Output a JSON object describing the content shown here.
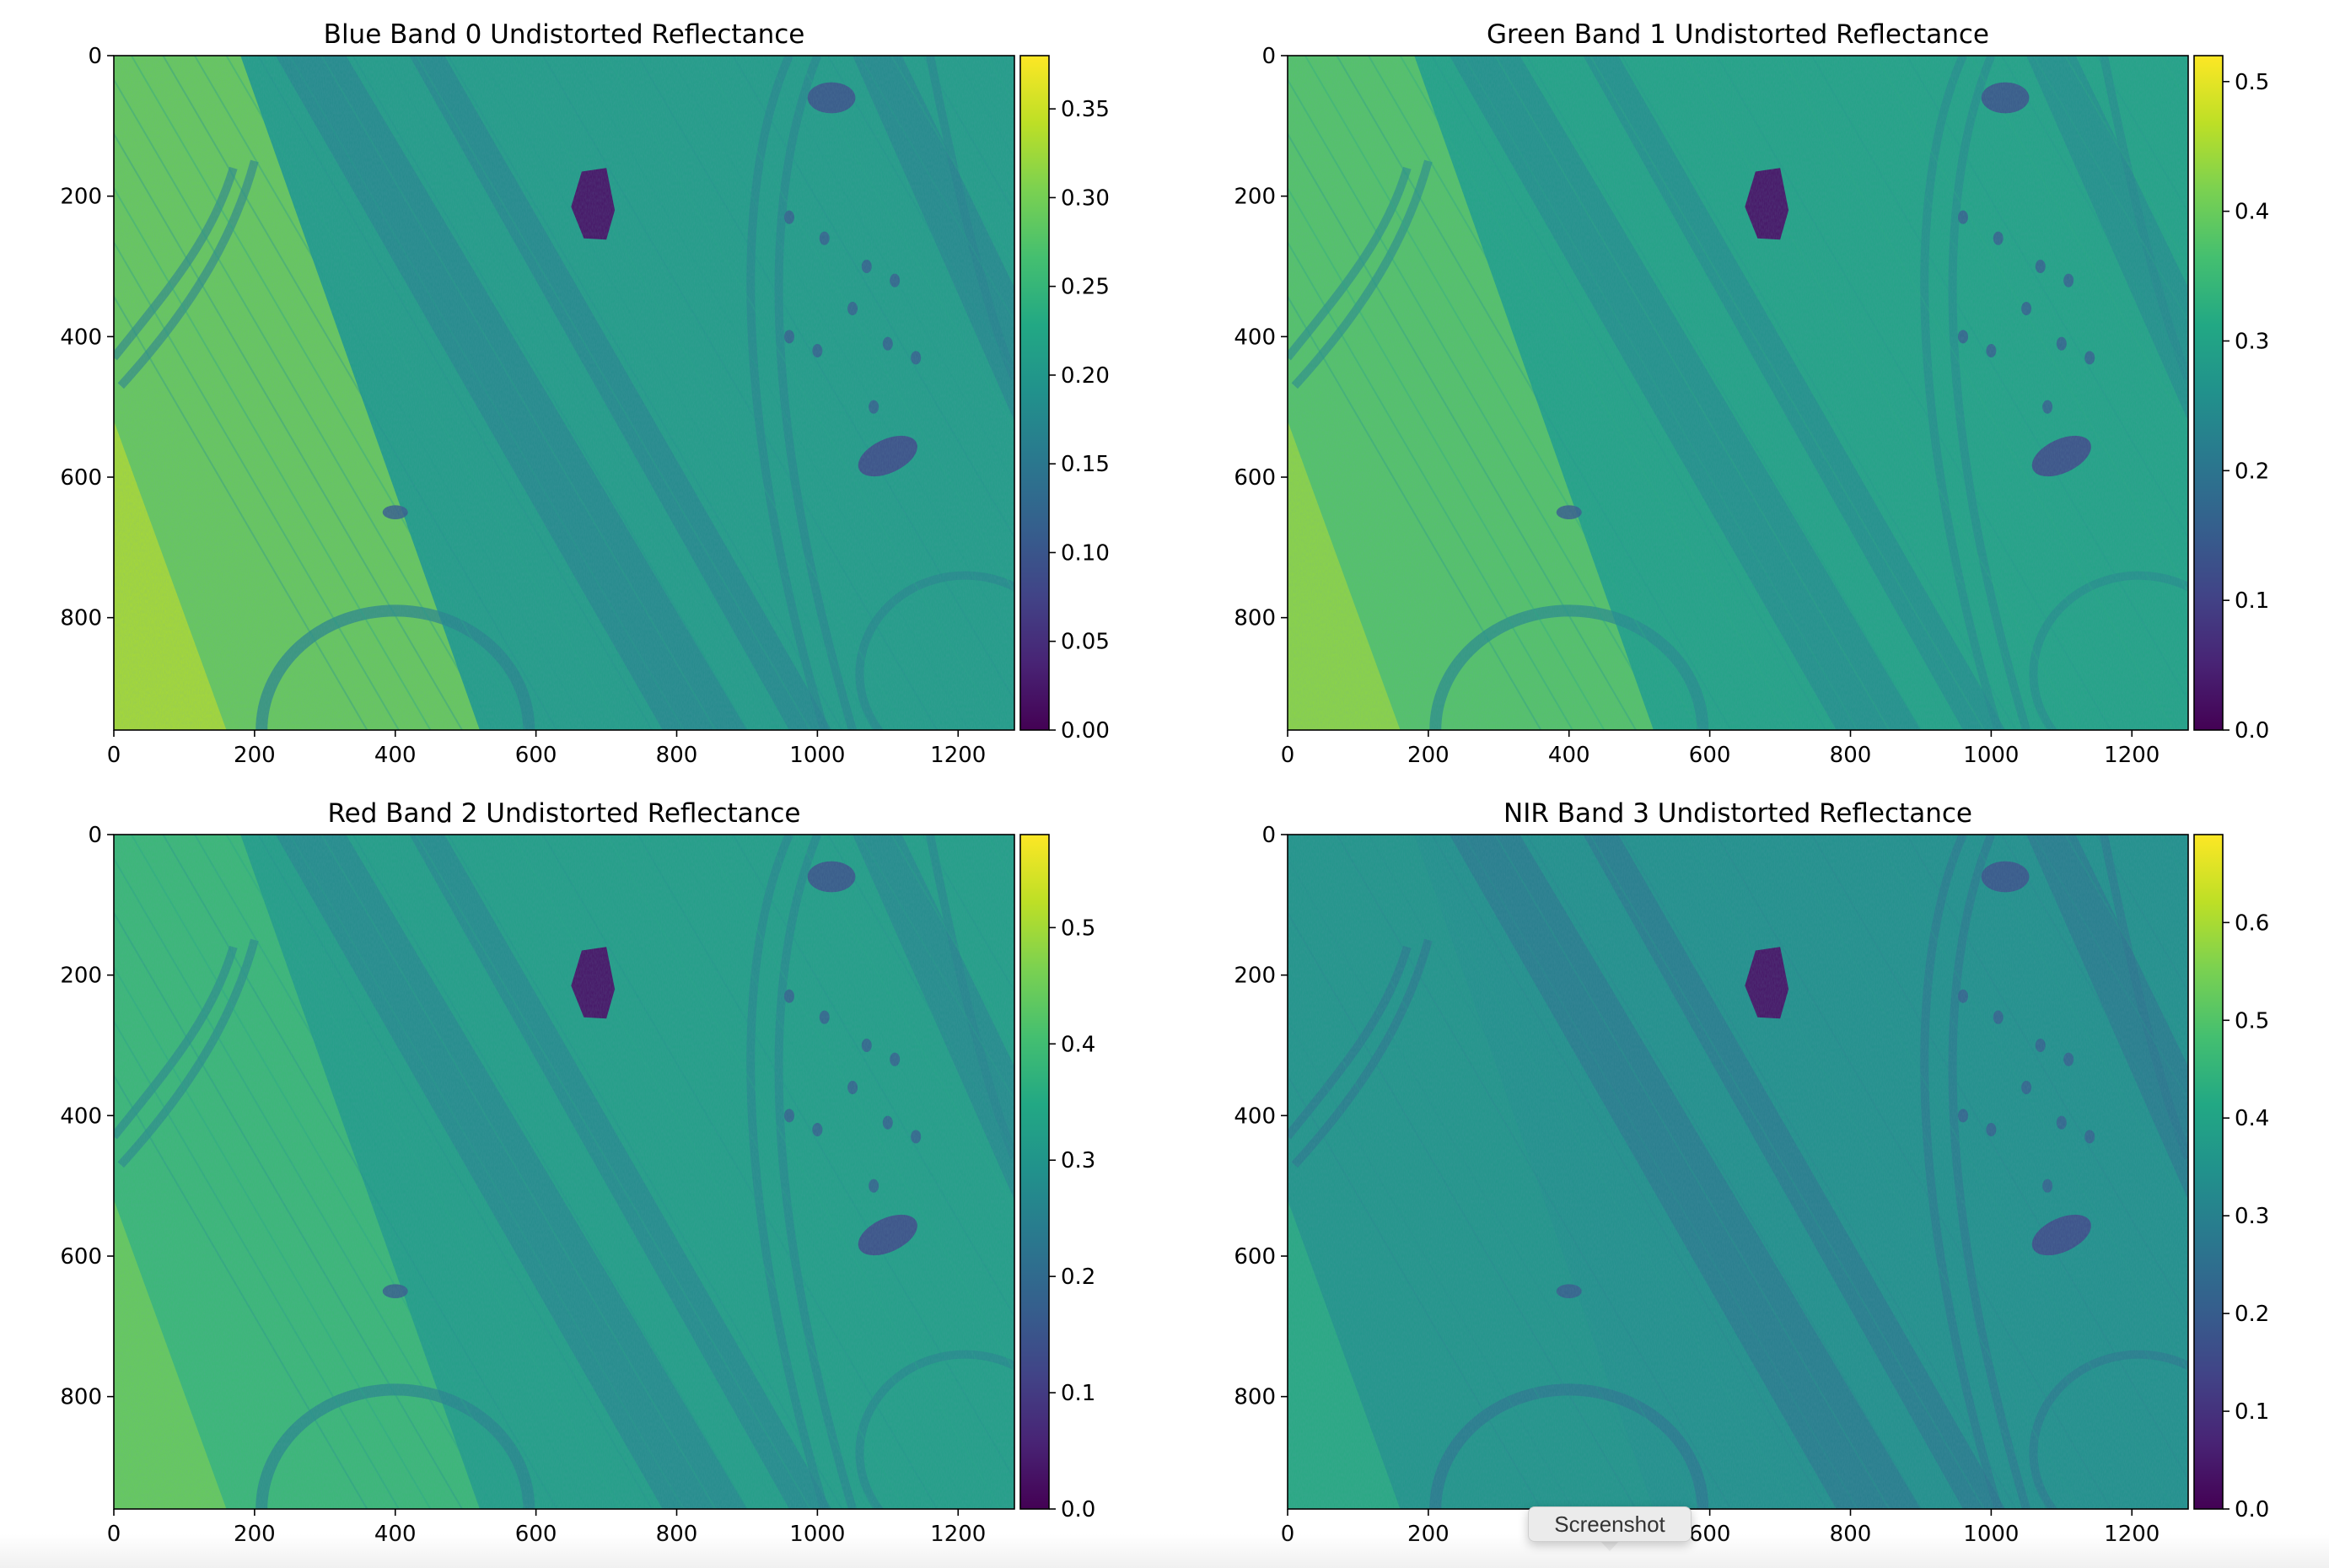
{
  "chart_data": [
    {
      "type": "heatmap",
      "title": "Blue Band 0 Undistorted Reflectance",
      "colormap": "viridis",
      "xlim": [
        0,
        1280
      ],
      "ylim": [
        960,
        0
      ],
      "xticks": [
        0,
        200,
        400,
        600,
        800,
        1000,
        1200
      ],
      "yticks": [
        0,
        200,
        400,
        600,
        800
      ],
      "colorbar": {
        "range": [
          0.0,
          0.38
        ],
        "ticks": [
          0.0,
          0.05,
          0.1,
          0.15,
          0.2,
          0.25,
          0.3,
          0.35
        ],
        "tick_labels": [
          "0.00",
          "0.05",
          "0.10",
          "0.15",
          "0.20",
          "0.25",
          "0.30",
          "0.35"
        ]
      },
      "base_level": 0.55,
      "left_bright": 0.82
    },
    {
      "type": "heatmap",
      "title": "Green Band 1 Undistorted Reflectance",
      "colormap": "viridis",
      "xlim": [
        0,
        1280
      ],
      "ylim": [
        960,
        0
      ],
      "xticks": [
        0,
        200,
        400,
        600,
        800,
        1000,
        1200
      ],
      "yticks": [
        0,
        200,
        400,
        600,
        800
      ],
      "colorbar": {
        "range": [
          0.0,
          0.52
        ],
        "ticks": [
          0.0,
          0.1,
          0.2,
          0.3,
          0.4,
          0.5
        ],
        "tick_labels": [
          "0.0",
          "0.1",
          "0.2",
          "0.3",
          "0.4",
          "0.5"
        ]
      },
      "base_level": 0.58,
      "left_bright": 0.78
    },
    {
      "type": "heatmap",
      "title": "Red Band 2 Undistorted Reflectance",
      "colormap": "viridis",
      "xlim": [
        0,
        1280
      ],
      "ylim": [
        960,
        0
      ],
      "xticks": [
        0,
        200,
        400,
        600,
        800,
        1000,
        1200
      ],
      "yticks": [
        0,
        200,
        400,
        600,
        800
      ],
      "colorbar": {
        "range": [
          0.0,
          0.58
        ],
        "ticks": [
          0.0,
          0.1,
          0.2,
          0.3,
          0.4,
          0.5
        ],
        "tick_labels": [
          "0.0",
          "0.1",
          "0.2",
          "0.3",
          "0.4",
          "0.5"
        ]
      },
      "base_level": 0.56,
      "left_bright": 0.72
    },
    {
      "type": "heatmap",
      "title": "NIR Band 3 Undistorted Reflectance",
      "colormap": "viridis",
      "xlim": [
        0,
        1280
      ],
      "ylim": [
        960,
        0
      ],
      "xticks": [
        0,
        200,
        400,
        600,
        800,
        1000,
        1200
      ],
      "yticks": [
        0,
        200,
        400,
        600,
        800
      ],
      "colorbar": {
        "range": [
          0.0,
          0.69
        ],
        "ticks": [
          0.0,
          0.1,
          0.2,
          0.3,
          0.4,
          0.5,
          0.6
        ],
        "tick_labels": [
          "0.0",
          "0.1",
          "0.2",
          "0.3",
          "0.4",
          "0.5",
          "0.6"
        ]
      },
      "base_level": 0.5,
      "left_bright": 0.56
    }
  ],
  "tooltip": {
    "label": "Screenshot"
  }
}
